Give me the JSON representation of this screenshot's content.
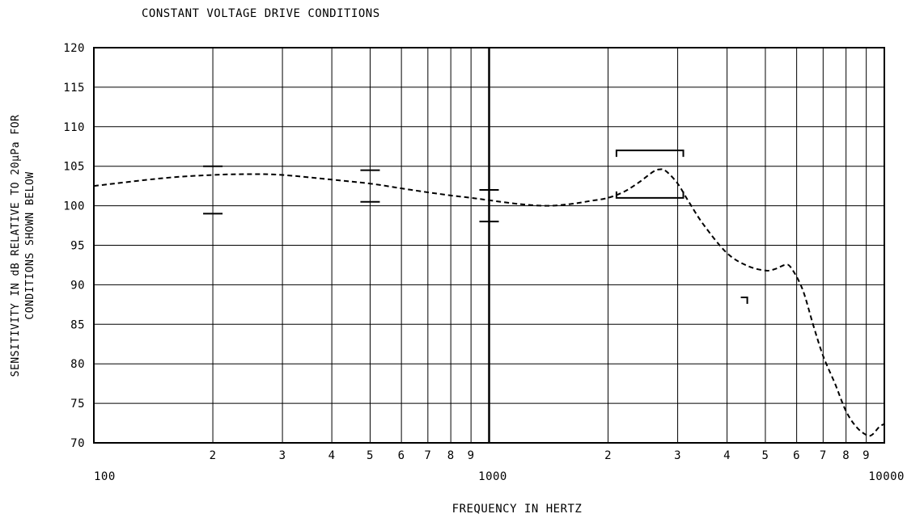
{
  "chart_data": {
    "type": "line",
    "title": "CONSTANT VOLTAGE DRIVE CONDITIONS",
    "xlabel": "FREQUENCY IN HERTZ",
    "ylabel_lines": [
      "SENSITIVITY IN dB RELATIVE TO 20μPa FOR",
      "CONDITIONS SHOWN BELOW"
    ],
    "x_scale": "log",
    "xlim": [
      100,
      10000
    ],
    "ylim": [
      70,
      120
    ],
    "grid": true,
    "y_ticks": [
      120,
      115,
      110,
      105,
      100,
      95,
      90,
      85,
      80,
      75,
      70
    ],
    "x_ticks": [
      {
        "value": 100,
        "label": "100"
      },
      {
        "value": 200,
        "label": "2"
      },
      {
        "value": 300,
        "label": "3"
      },
      {
        "value": 400,
        "label": "4"
      },
      {
        "value": 500,
        "label": "5"
      },
      {
        "value": 600,
        "label": "6"
      },
      {
        "value": 700,
        "label": "7"
      },
      {
        "value": 800,
        "label": "8"
      },
      {
        "value": 900,
        "label": "9"
      },
      {
        "value": 1000,
        "label": "1000"
      },
      {
        "value": 2000,
        "label": "2"
      },
      {
        "value": 3000,
        "label": "3"
      },
      {
        "value": 4000,
        "label": "4"
      },
      {
        "value": 5000,
        "label": "5"
      },
      {
        "value": 6000,
        "label": "6"
      },
      {
        "value": 7000,
        "label": "7"
      },
      {
        "value": 8000,
        "label": "8"
      },
      {
        "value": 9000,
        "label": "9"
      },
      {
        "value": 10000,
        "label": "10000"
      }
    ],
    "series": [
      {
        "style": "dashed",
        "x": [
          100,
          150,
          200,
          250,
          300,
          400,
          500,
          600,
          700,
          800,
          900,
          1000,
          1200,
          1400,
          1600,
          1800,
          2000,
          2200,
          2400,
          2600,
          2700,
          2800,
          3000,
          3200,
          3500,
          4000,
          4500,
          5000,
          5300,
          5600,
          5800,
          6200,
          6600,
          7000,
          7500,
          8000,
          8500,
          9000,
          9300,
          9700,
          10000
        ],
        "y": [
          102.5,
          103.5,
          103.9,
          104.0,
          103.9,
          103.3,
          102.8,
          102.2,
          101.7,
          101.3,
          101.0,
          100.7,
          100.2,
          100.0,
          100.2,
          100.6,
          101.0,
          101.8,
          103.0,
          104.3,
          104.6,
          104.4,
          102.8,
          100.5,
          97.5,
          94.0,
          92.4,
          91.8,
          92.0,
          92.5,
          92.2,
          89.5,
          85.0,
          81.0,
          77.5,
          74.0,
          72.0,
          71.0,
          71.0,
          72.0,
          72.4
        ]
      }
    ],
    "tolerance_marks": [
      {
        "x": 200,
        "y": [
          105,
          99
        ]
      },
      {
        "x": 500,
        "y": [
          104.5,
          100.5
        ]
      },
      {
        "x": 1000,
        "y": [
          102,
          98
        ]
      }
    ],
    "tolerance_box": {
      "x_from": 2100,
      "x_to": 3100,
      "y_top": 107,
      "y_bottom": 101
    },
    "small_mark": {
      "x": 4500,
      "y": 88
    }
  }
}
